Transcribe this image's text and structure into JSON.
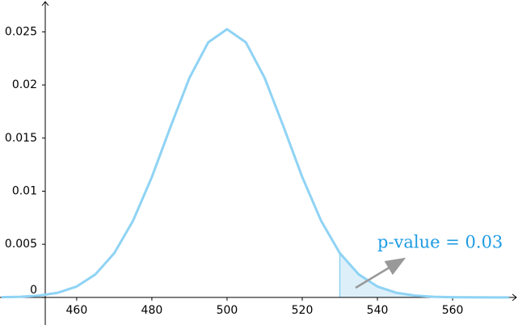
{
  "chart_data": {
    "type": "line",
    "x": [
      440,
      445,
      450,
      455,
      460,
      465,
      470,
      475,
      480,
      485,
      490,
      495,
      500,
      505,
      510,
      515,
      520,
      525,
      530,
      535,
      540,
      545,
      550,
      555,
      560,
      565,
      570,
      575
    ],
    "values": [
      2e-05,
      5.9e-05,
      0.000169,
      0.000437,
      0.001024,
      0.002172,
      0.004161,
      0.007222,
      0.011335,
      0.016092,
      0.020667,
      0.024015,
      0.02525,
      0.024015,
      0.020667,
      0.016092,
      0.011335,
      0.007222,
      0.004161,
      0.002172,
      0.001024,
      0.000437,
      0.000169,
      5.9e-05,
      2e-05,
      5.3e-06,
      1.4e-06,
      3e-07
    ],
    "color": "#8fd3f4",
    "shade_from": 530,
    "shade_color": "#cfe9f8",
    "annotation": "p-value = 0.03",
    "annotation_color": "#1e9be2",
    "xlim": [
      439.6,
      577.4
    ],
    "ylim": [
      -0.0026,
      0.028
    ],
    "xticks": [
      460,
      480,
      500,
      520,
      540,
      560
    ],
    "yticks": [
      0,
      0.005,
      0.01,
      0.015,
      0.02,
      0.025
    ],
    "grid": false
  }
}
